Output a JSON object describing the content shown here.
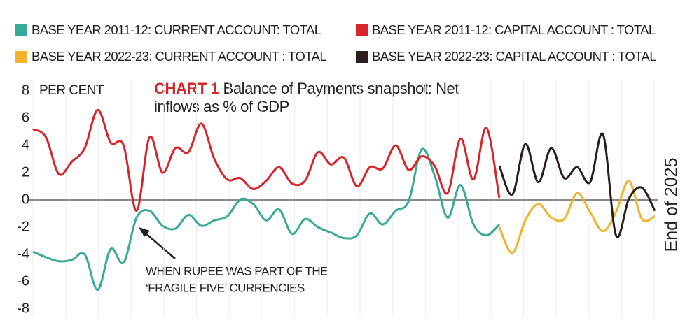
{
  "chart_data": {
    "type": "line",
    "chart_label": "CHART 1",
    "title": "Balance of Payments snapshot: Net inflows as % of GDP",
    "y_label": "PER CENT",
    "side_label": "End of 2025",
    "annotation": [
      "WHEN RUPEE WAS PART OF THE",
      "‘FRAGILE FIVE’ CURRENCIES"
    ],
    "categories": [
      null,
      null,
      null,
      null,
      null,
      null,
      null,
      null,
      null,
      null,
      null,
      null,
      null,
      null,
      null,
      null,
      null,
      null,
      null,
      null,
      null,
      null,
      null,
      null,
      null,
      null,
      null,
      null,
      null,
      null,
      null,
      null,
      null,
      null,
      null,
      null,
      null,
      null,
      null,
      null,
      null,
      null,
      null,
      null,
      null,
      null,
      null,
      null,
      null
    ],
    "ylim": [
      -8,
      8
    ],
    "yticks": [
      8,
      6,
      4,
      2,
      0,
      -2,
      -4,
      -6,
      -8
    ],
    "series": [
      {
        "name": "BASE YEAR 2011-12: CURRENT ACCOUNT: TOTAL",
        "color": "#3aaa98",
        "values": [
          -3.8,
          -4.2,
          -4.5,
          -4.4,
          -4.0,
          -6.6,
          -3.6,
          -4.6,
          -1.3,
          -0.8,
          -1.9,
          -2.1,
          -1.1,
          -1.9,
          -1.5,
          -1.2,
          0,
          -0.3,
          -1.5,
          -0.7,
          -2.5,
          -1.4,
          -2.0,
          -2.4,
          -2.8,
          -2.6,
          -1.0,
          -1.8,
          -0.8,
          -0.1,
          3.7,
          1.8,
          -1.3,
          1.1,
          -1.8,
          -2.6,
          -1.8,
          null,
          null,
          null,
          null,
          null,
          null,
          null,
          null,
          null,
          null,
          null,
          null
        ]
      },
      {
        "name": "BASE YEAR 2011-12: CAPITAL ACCOUNT : TOTAL",
        "color": "#d6262b",
        "values": [
          5.2,
          4.6,
          1.9,
          2.8,
          3.8,
          6.6,
          4.2,
          4.0,
          -0.8,
          4.6,
          2.0,
          3.8,
          3.5,
          5.6,
          3.0,
          1.5,
          1.6,
          0.8,
          1.4,
          2.4,
          1.2,
          1.4,
          3.5,
          2.6,
          3.1,
          1.0,
          2.4,
          2.3,
          4.0,
          2.2,
          3.2,
          2.5,
          0.5,
          4.5,
          1.5,
          5.3,
          0.1,
          null,
          null,
          null,
          null,
          null,
          null,
          null,
          null,
          null,
          null,
          null,
          null
        ]
      },
      {
        "name": "BASE YEAR 2022-23: CURRENT ACCOUNT : TOTAL",
        "color": "#f2b22a",
        "values": [
          null,
          null,
          null,
          null,
          null,
          null,
          null,
          null,
          null,
          null,
          null,
          null,
          null,
          null,
          null,
          null,
          null,
          null,
          null,
          null,
          null,
          null,
          null,
          null,
          null,
          null,
          null,
          null,
          null,
          null,
          null,
          null,
          null,
          null,
          null,
          null,
          -2.0,
          -3.9,
          -1.5,
          -0.3,
          -1.3,
          -1.4,
          0.5,
          -0.9,
          -2.3,
          -0.9,
          1.4,
          -1.4,
          -1.2
        ]
      },
      {
        "name": "BASE YEAR 2022-23: CAPITAL ACCOUNT : TOTAL",
        "color": "#2a1e1e",
        "values": [
          null,
          null,
          null,
          null,
          null,
          null,
          null,
          null,
          null,
          null,
          null,
          null,
          null,
          null,
          null,
          null,
          null,
          null,
          null,
          null,
          null,
          null,
          null,
          null,
          null,
          null,
          null,
          null,
          null,
          null,
          null,
          null,
          null,
          null,
          null,
          null,
          2.5,
          0.4,
          4.1,
          1.3,
          3.8,
          1.6,
          2.4,
          1.3,
          4.8,
          -2.6,
          0.1,
          0.9,
          -0.8
        ]
      }
    ]
  }
}
